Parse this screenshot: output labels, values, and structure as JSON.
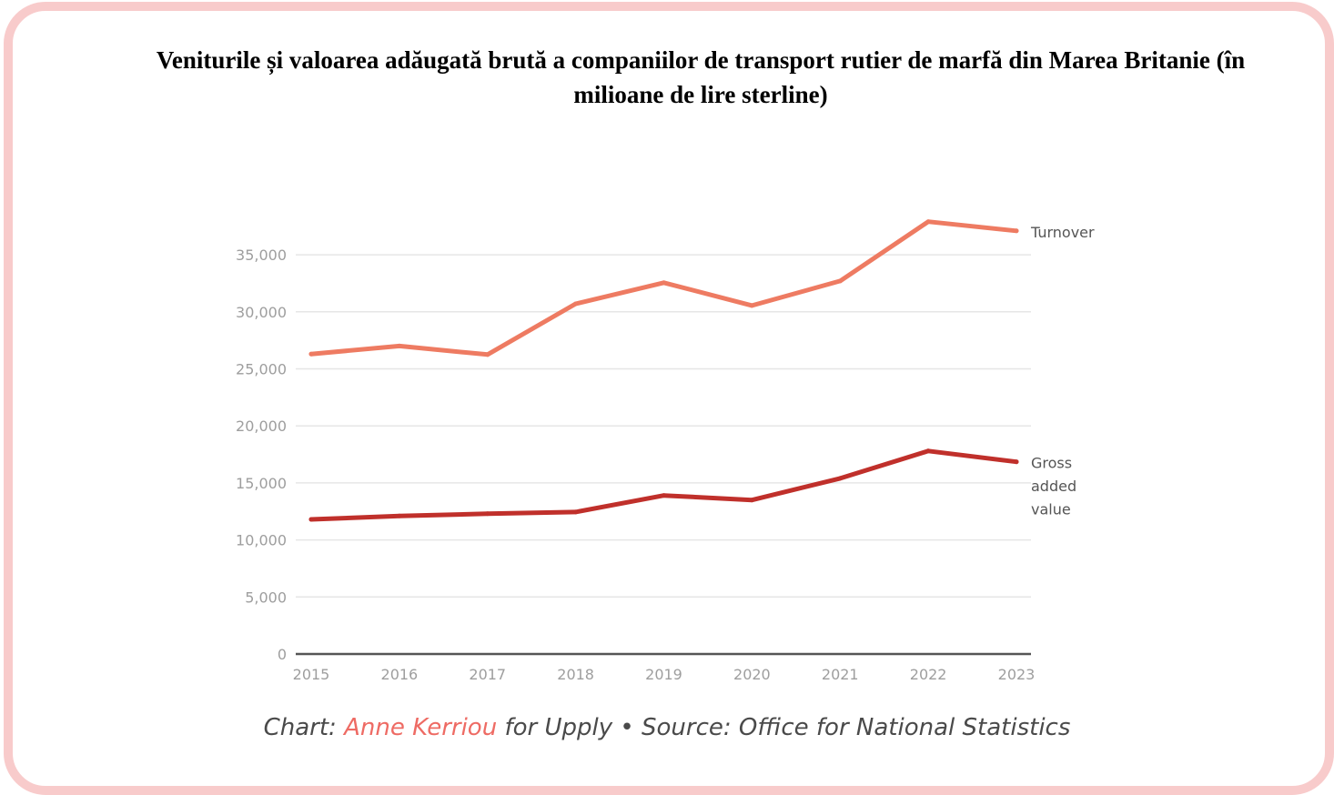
{
  "chart_data": {
    "type": "line",
    "title": "Veniturile și valoarea adăugată brută a companiilor de transport rutier de marfă din Marea Britanie (în milioane de lire sterline)",
    "xlabel": "",
    "ylabel": "",
    "x": [
      "2015",
      "2016",
      "2017",
      "2018",
      "2019",
      "2020",
      "2021",
      "2022",
      "2023"
    ],
    "ylim": [
      0,
      35000
    ],
    "yticks": [
      0,
      5000,
      10000,
      15000,
      20000,
      25000,
      30000,
      35000
    ],
    "ytick_labels": [
      "0",
      "5,000",
      "10,000",
      "15,000",
      "20,000",
      "25,000",
      "30,000",
      "35,000"
    ],
    "grid": true,
    "legend": "direct-labels-right",
    "series": [
      {
        "name": "Turnover",
        "label_lines": [
          "Turnover"
        ],
        "color": "#ee7b62",
        "values": [
          26300,
          27000,
          26250,
          30700,
          32550,
          30550,
          32700,
          37900,
          37100
        ]
      },
      {
        "name": "Gross added value",
        "label_lines": [
          "Gross",
          "added",
          "value"
        ],
        "color": "#c0302b",
        "values": [
          11800,
          12100,
          12300,
          12450,
          13900,
          13500,
          15400,
          17800,
          16850
        ]
      }
    ]
  },
  "caption": {
    "prefix": "Chart: ",
    "author": "Anne Kerriou",
    "middle": " for Upply  •  ",
    "source": "Source: Office for National Statistics"
  },
  "colors": {
    "frame_border": "#f8cbcb",
    "author_accent": "#ee6b64"
  }
}
